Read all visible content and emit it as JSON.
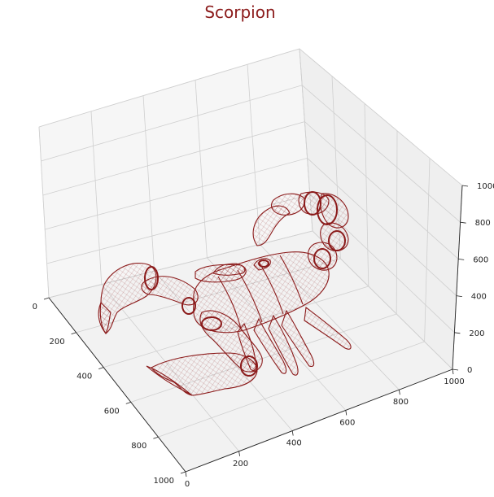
{
  "chart_data": {
    "type": "scatter",
    "projection": "3d",
    "title": "Scorpion",
    "subject": "scorpion",
    "render_style": "wireframe point cloud",
    "color": "#8b1a1a",
    "grid": true,
    "xlim": [
      0,
      1000
    ],
    "ylim": [
      0,
      1000
    ],
    "zlim": [
      0,
      1000
    ],
    "axes": {
      "x": {
        "ticks": [
          0,
          200,
          400,
          600,
          800,
          1000
        ]
      },
      "y": {
        "ticks": [
          0,
          200,
          400,
          600,
          800,
          1000
        ]
      },
      "z": {
        "ticks": [
          0,
          200,
          400,
          600,
          800,
          1000
        ]
      }
    }
  }
}
